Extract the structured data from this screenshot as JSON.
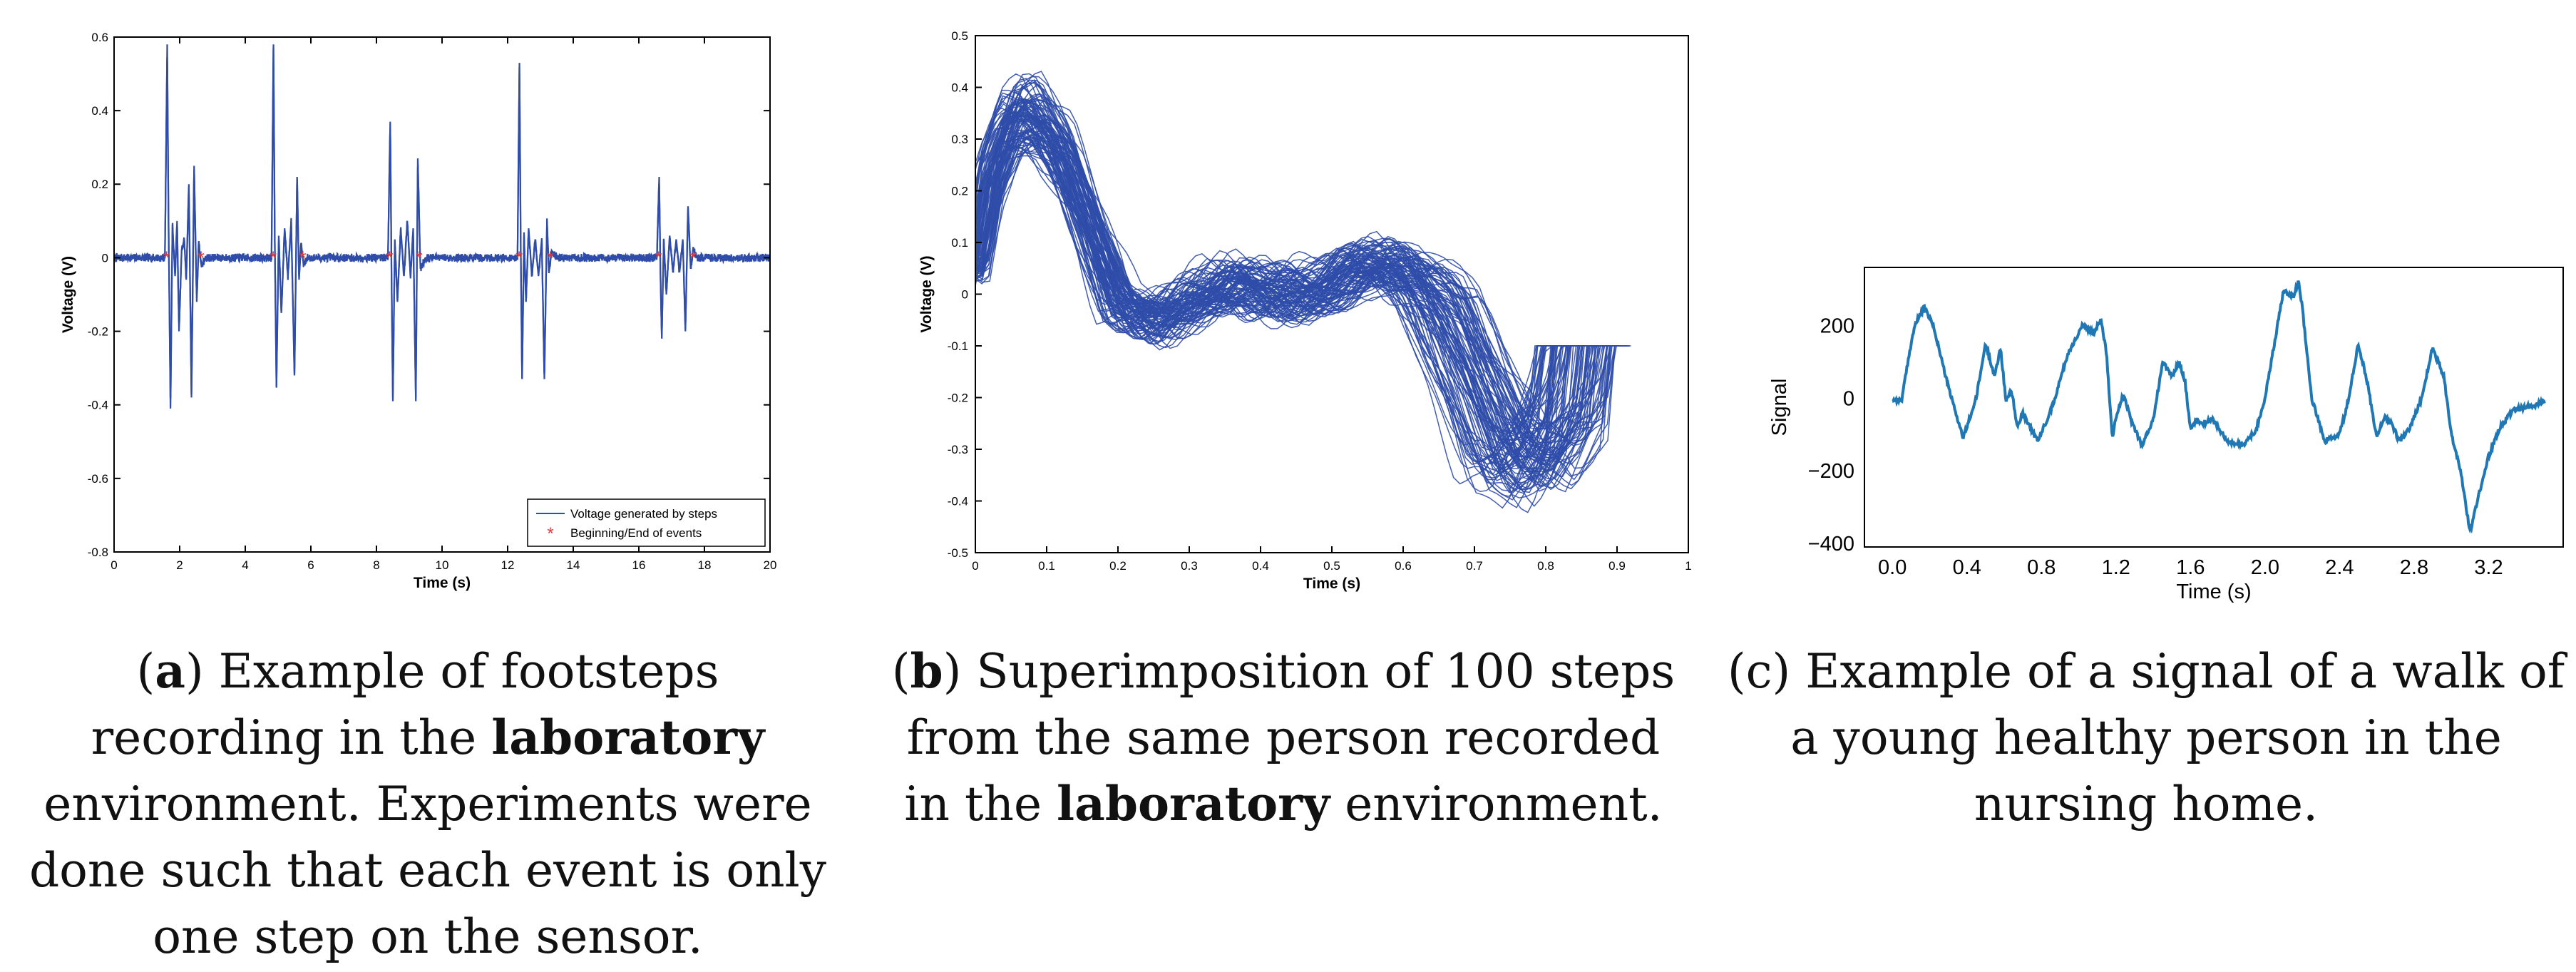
{
  "charts": [
    {
      "id": "a",
      "caption": {
        "letter": "a",
        "pre": ") Example of footsteps recording in the ",
        "bold": "laboratory",
        "post": " environment. Experiments were done such that each event is only one step on the sensor."
      },
      "chart_data": {
        "type": "line",
        "xlabel": "Time (s)",
        "ylabel": "Voltage (V)",
        "xlim": [
          0,
          20
        ],
        "ylim": [
          -0.8,
          0.6
        ],
        "xticks": [
          0,
          2,
          4,
          6,
          8,
          10,
          12,
          14,
          16,
          18,
          20
        ],
        "yticks": [
          -0.8,
          -0.6,
          -0.4,
          -0.2,
          0,
          0.2,
          0.4,
          0.6
        ],
        "legend_position": "bottom-right",
        "series": [
          {
            "name": "Voltage generated by steps",
            "color": "#2f4da8",
            "x": [
              0,
              1.55,
              1.62,
              1.66,
              1.72,
              1.78,
              1.86,
              1.92,
              1.98,
              2.06,
              2.14,
              2.2,
              2.28,
              2.36,
              2.44,
              2.52,
              2.58,
              2.66,
              2.8,
              4.0,
              4.8,
              4.86,
              4.9,
              4.95,
              5.02,
              5.1,
              5.2,
              5.3,
              5.4,
              5.5,
              5.58,
              5.64,
              5.7,
              5.78,
              5.9,
              8.35,
              8.42,
              8.46,
              8.5,
              8.56,
              8.64,
              8.74,
              8.84,
              8.94,
              9.04,
              9.12,
              9.2,
              9.26,
              9.34,
              9.5,
              12.3,
              12.36,
              12.4,
              12.44,
              12.5,
              12.56,
              12.64,
              12.74,
              12.84,
              12.94,
              13.04,
              13.12,
              13.2,
              13.26,
              13.34,
              13.5,
              16.55,
              16.62,
              16.66,
              16.7,
              16.76,
              16.84,
              16.94,
              17.04,
              17.14,
              17.24,
              17.34,
              17.42,
              17.5,
              17.58,
              17.66,
              17.8,
              20
            ],
            "y": [
              0,
              0,
              0.58,
              0.1,
              -0.41,
              0.09,
              -0.05,
              0.1,
              -0.2,
              0.02,
              0.05,
              -0.06,
              0.2,
              -0.38,
              0.25,
              -0.12,
              0.04,
              -0.02,
              0,
              0,
              0,
              0.58,
              0.05,
              -0.35,
              0.06,
              -0.15,
              0.08,
              -0.05,
              0.1,
              -0.32,
              0.22,
              -0.06,
              0.04,
              -0.02,
              0,
              0,
              0.37,
              -0.05,
              -0.39,
              0.05,
              -0.12,
              0.08,
              -0.05,
              0.1,
              -0.05,
              0.08,
              -0.39,
              0.27,
              -0.03,
              0,
              0,
              0.53,
              0.02,
              -0.33,
              0.06,
              -0.12,
              0.08,
              -0.05,
              0.05,
              -0.05,
              0.05,
              -0.33,
              0.1,
              -0.04,
              0.02,
              0,
              0,
              0.22,
              -0.05,
              -0.22,
              0.05,
              -0.1,
              0.06,
              -0.04,
              0.05,
              -0.04,
              0.05,
              -0.2,
              0.14,
              -0.03,
              0.02,
              0,
              0
            ]
          },
          {
            "name": "Beginning/End of events",
            "color": "#e03c3c",
            "marker": "*",
            "x": [
              1.6,
              2.65,
              4.85,
              5.75,
              8.4,
              9.3,
              12.35,
              13.3,
              16.6,
              17.65
            ],
            "y": [
              0,
              0,
              0,
              0,
              0,
              0,
              0,
              0,
              0,
              0
            ]
          }
        ]
      }
    },
    {
      "id": "b",
      "caption": {
        "letter": "b",
        "pre": ") Superimposition of 100 steps from the same person recorded in the ",
        "bold": "laboratory",
        "post": " environment."
      },
      "chart_data": {
        "type": "line",
        "xlabel": "Time (s)",
        "ylabel": "Voltage (V)",
        "xlim": [
          0,
          1
        ],
        "ylim": [
          -0.5,
          0.5
        ],
        "xticks": [
          0,
          0.1,
          0.2,
          0.3,
          0.4,
          0.5,
          0.6,
          0.7,
          0.8,
          0.9,
          1
        ],
        "yticks": [
          -0.5,
          -0.4,
          -0.3,
          -0.2,
          -0.1,
          0,
          0.1,
          0.2,
          0.3,
          0.4,
          0.5
        ],
        "series_count": 100,
        "color": "#2f4da8",
        "mean_curve": {
          "x": [
            0,
            0.02,
            0.05,
            0.08,
            0.12,
            0.16,
            0.2,
            0.25,
            0.3,
            0.35,
            0.4,
            0.45,
            0.5,
            0.55,
            0.6,
            0.65,
            0.7,
            0.74,
            0.78,
            0.82,
            0.86
          ],
          "y": [
            0.05,
            0.22,
            0.33,
            0.34,
            0.27,
            0.13,
            -0.02,
            -0.05,
            -0.02,
            0.02,
            0.01,
            -0.01,
            0.02,
            0.06,
            0.05,
            -0.02,
            -0.17,
            -0.3,
            -0.33,
            -0.25,
            -0.1
          ]
        },
        "end_level": -0.1,
        "duration_range": [
          0.8,
          0.92
        ]
      }
    },
    {
      "id": "c",
      "caption": {
        "letter": "c",
        "pre": ") Example of a signal of a walk of a young healthy person in the nursing home.",
        "bold": "",
        "post": ""
      },
      "chart_data": {
        "type": "line",
        "xlabel": "Time (s)",
        "ylabel": "Signal",
        "xlim": [
          -0.15,
          3.6
        ],
        "ylim": [
          -410,
          360
        ],
        "xticks": [
          0.0,
          0.4,
          0.8,
          1.2,
          1.6,
          2.0,
          2.4,
          2.8,
          3.2
        ],
        "xticklabels": [
          "0.0",
          "0.4",
          "0.8",
          "1.2",
          "1.6",
          "2.0",
          "2.4",
          "2.8",
          "3.2"
        ],
        "yticks": [
          -400,
          -200,
          0,
          200
        ],
        "yticklabels": [
          "−400",
          "−200",
          "0",
          "200"
        ],
        "color": "#1f77b4",
        "series": [
          {
            "x": [
              0.0,
              0.05,
              0.1,
              0.12,
              0.17,
              0.22,
              0.3,
              0.38,
              0.45,
              0.5,
              0.55,
              0.58,
              0.61,
              0.64,
              0.67,
              0.7,
              0.78,
              0.86,
              0.94,
              1.02,
              1.08,
              1.12,
              1.15,
              1.18,
              1.2,
              1.24,
              1.28,
              1.34,
              1.4,
              1.45,
              1.5,
              1.54,
              1.57,
              1.6,
              1.63,
              1.66,
              1.72,
              1.8,
              1.88,
              1.95,
              2.0,
              2.05,
              2.1,
              2.15,
              2.18,
              2.2,
              2.22,
              2.25,
              2.32,
              2.4,
              2.45,
              2.5,
              2.55,
              2.6,
              2.64,
              2.68,
              2.72,
              2.78,
              2.84,
              2.9,
              2.96,
              3.0,
              3.05,
              3.1,
              3.15,
              3.2,
              3.26,
              3.34,
              3.44,
              3.5
            ],
            "y": [
              -5,
              -5,
              150,
              200,
              250,
              200,
              30,
              -110,
              0,
              150,
              60,
              140,
              -10,
              20,
              -80,
              -40,
              -120,
              -20,
              120,
              200,
              180,
              220,
              120,
              -110,
              -50,
              10,
              -60,
              -130,
              -60,
              100,
              60,
              100,
              50,
              -90,
              -60,
              -70,
              -60,
              -120,
              -130,
              -90,
              0,
              150,
              300,
              280,
              320,
              250,
              150,
              0,
              -120,
              -100,
              0,
              150,
              40,
              -110,
              -50,
              -70,
              -120,
              -80,
              0,
              140,
              60,
              -100,
              -200,
              -370,
              -260,
              -160,
              -80,
              -30,
              -20,
              -10
            ]
          }
        ]
      }
    }
  ]
}
